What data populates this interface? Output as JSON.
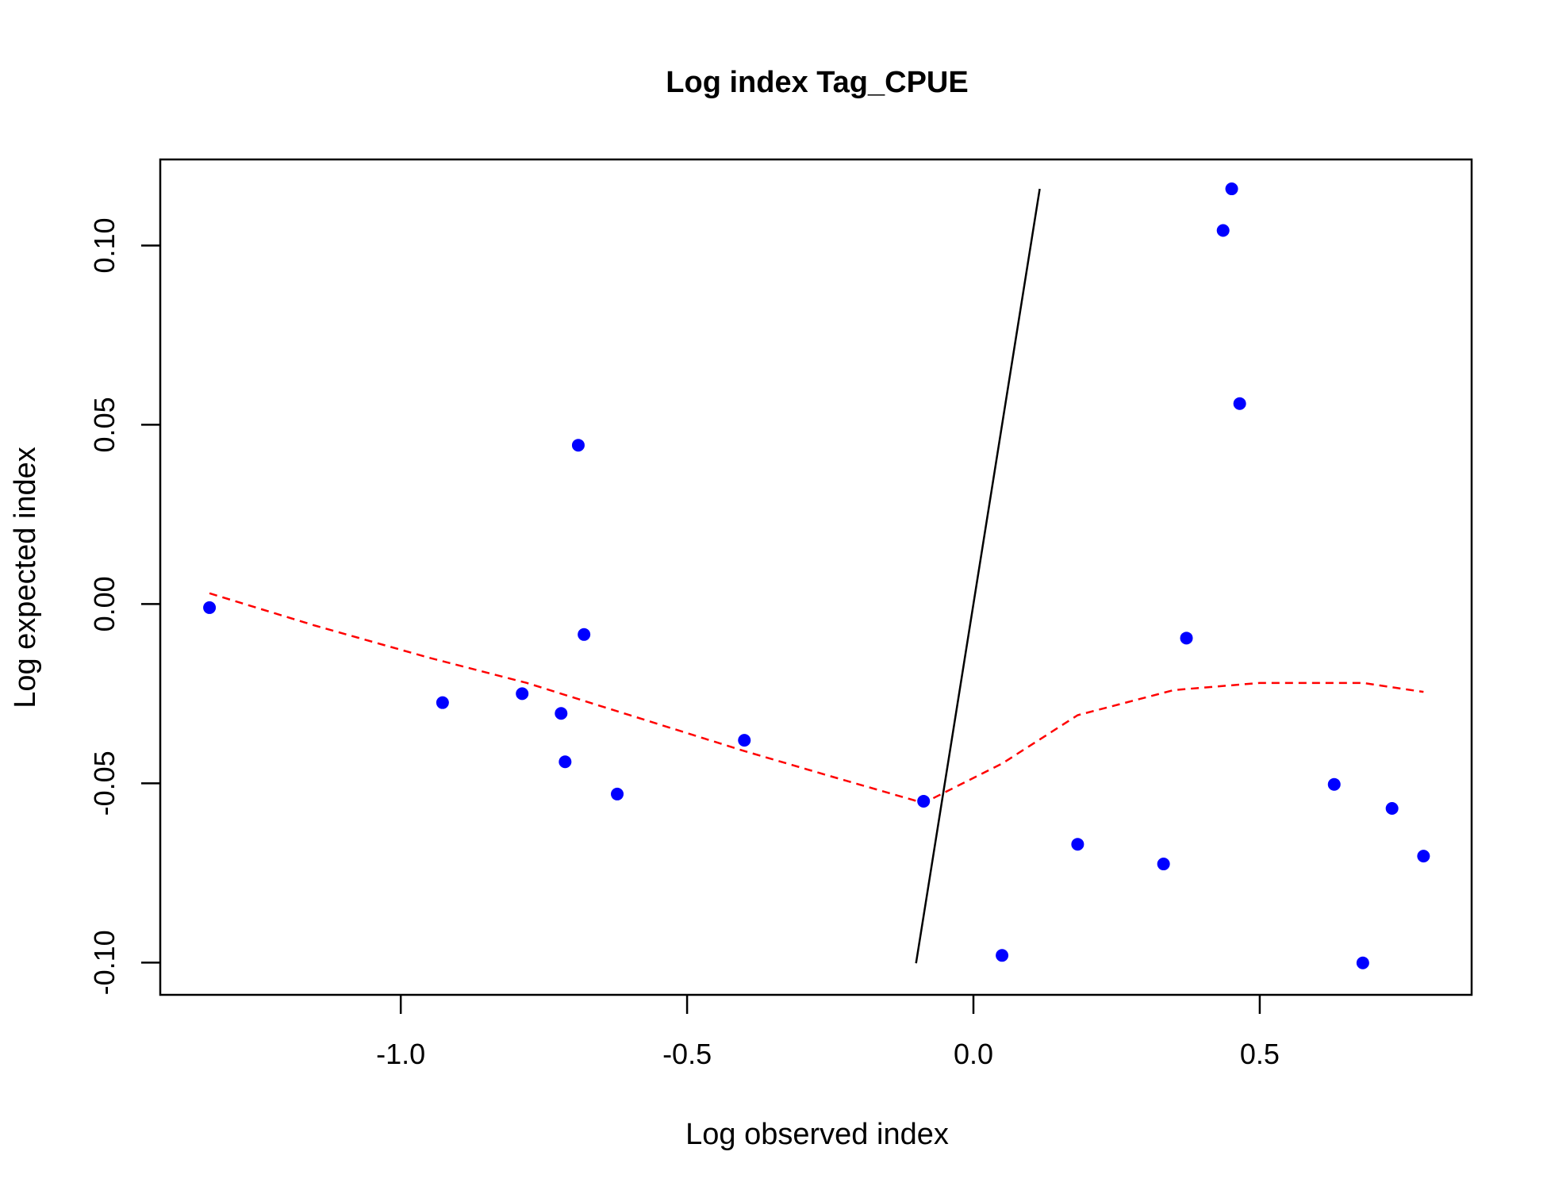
{
  "chart_data": {
    "type": "scatter",
    "title": "Log index Tag_CPUE",
    "xlabel": "Log observed index",
    "ylabel": "Log expected index",
    "xlim": [
      -1.42,
      0.87
    ],
    "ylim": [
      -0.109,
      0.124
    ],
    "x_ticks": [
      -1.0,
      -0.5,
      0.0,
      0.5
    ],
    "x_tick_labels": [
      "-1.0",
      "-0.5",
      "0.0",
      "0.5"
    ],
    "y_ticks": [
      -0.1,
      -0.05,
      0.0,
      0.05,
      0.1
    ],
    "y_tick_labels": [
      "-0.10",
      "-0.05",
      "0.00",
      "0.05",
      "0.10"
    ],
    "grid": false,
    "colors": {
      "points": "#0000ff",
      "smoother": "#ff0000",
      "reference": "#000000"
    },
    "points": {
      "x": [
        -1.334,
        -0.927,
        -0.788,
        -0.72,
        -0.713,
        -0.69,
        -0.68,
        -0.622,
        -0.4,
        -0.087,
        0.05,
        0.182,
        0.332,
        0.372,
        0.436,
        0.451,
        0.465,
        0.63,
        0.68,
        0.731,
        0.786
      ],
      "y": [
        -0.001,
        -0.0275,
        -0.025,
        -0.0305,
        -0.044,
        0.0443,
        -0.0085,
        -0.053,
        -0.038,
        -0.055,
        -0.098,
        -0.067,
        -0.0725,
        -0.0095,
        0.1042,
        0.1158,
        0.0559,
        -0.0503,
        -0.1001,
        -0.057,
        -0.0703
      ]
    },
    "smoother": {
      "style": "dashed",
      "x": [
        -1.334,
        -1.15,
        -0.95,
        -0.78,
        -0.6,
        -0.4,
        -0.25,
        -0.087,
        0.05,
        0.182,
        0.35,
        0.5,
        0.68,
        0.786
      ],
      "y": [
        0.003,
        -0.006,
        -0.015,
        -0.022,
        -0.031,
        -0.041,
        -0.048,
        -0.0555,
        -0.0445,
        -0.031,
        -0.024,
        -0.022,
        -0.022,
        -0.0245
      ]
    },
    "reference_line": {
      "style": "solid",
      "x": [
        -0.1002,
        0.1158
      ],
      "y": [
        -0.1002,
        0.1158
      ]
    }
  }
}
